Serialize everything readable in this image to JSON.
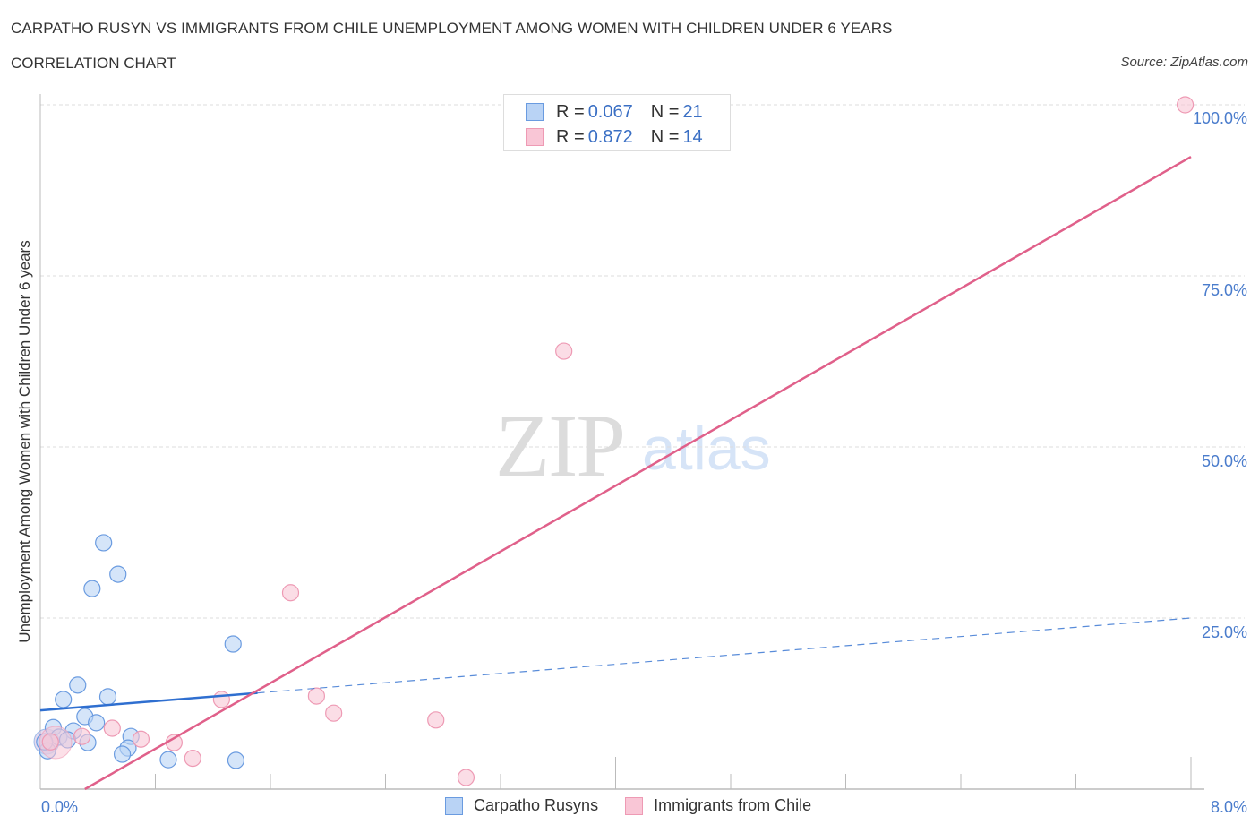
{
  "header": {
    "title": "CARPATHO RUSYN VS IMMIGRANTS FROM CHILE UNEMPLOYMENT AMONG WOMEN WITH CHILDREN UNDER 6 YEARS",
    "subtitle": "CORRELATION CHART",
    "source": "Source: ZipAtlas.com"
  },
  "watermark": {
    "zip": "ZIP",
    "atlas": "atlas"
  },
  "axes": {
    "y_label": "Unemployment Among Women with Children Under 6 years",
    "y_ticks": [
      "100.0%",
      "75.0%",
      "50.0%",
      "25.0%"
    ],
    "x_ticks": [
      "0.0%",
      "8.0%"
    ]
  },
  "legend_top": {
    "rows": [
      {
        "r_label": "R = ",
        "r_value": "0.067",
        "n_label": "N = ",
        "n_value": "21"
      },
      {
        "r_label": "R = ",
        "r_value": "0.872",
        "n_label": "N = ",
        "n_value": "14"
      }
    ]
  },
  "legend_bottom": [
    {
      "label": "Carpatho Rusyns"
    },
    {
      "label": "Immigrants from Chile"
    }
  ],
  "colors": {
    "blue_fill": "#b9d3f5",
    "blue_stroke": "#6a9be0",
    "blue_line": "#2f6fd0",
    "pink_fill": "#f9c6d6",
    "pink_stroke": "#ee9ab4",
    "pink_line": "#e0608a",
    "tick_text": "#4a7ccc",
    "grid": "#dddddd"
  },
  "chart_data": {
    "type": "scatter",
    "title": "CARPATHO RUSYN VS IMMIGRANTS FROM CHILE UNEMPLOYMENT AMONG WOMEN WITH CHILDREN UNDER 6 YEARS",
    "subtitle": "CORRELATION CHART",
    "xlabel": "",
    "ylabel": "Unemployment Among Women with Children Under 6 years",
    "xlim": [
      0,
      8
    ],
    "ylim": [
      0,
      100
    ],
    "x_unit": "%",
    "y_unit": "%",
    "y_ticks": [
      25,
      50,
      75,
      100
    ],
    "x_tick_labels": [
      "0.0%",
      "8.0%"
    ],
    "grid": true,
    "legend_position": "bottom",
    "series": [
      {
        "name": "Carpatho Rusyns",
        "R": 0.067,
        "N": 21,
        "color": "#6a9be0",
        "points": [
          [
            0.44,
            36.0
          ],
          [
            0.54,
            31.4
          ],
          [
            0.36,
            29.3
          ],
          [
            1.34,
            21.2
          ],
          [
            0.26,
            15.2
          ],
          [
            0.16,
            13.1
          ],
          [
            0.47,
            13.5
          ],
          [
            0.31,
            10.6
          ],
          [
            0.39,
            9.7
          ],
          [
            0.09,
            9.0
          ],
          [
            0.23,
            8.5
          ],
          [
            0.63,
            7.7
          ],
          [
            0.13,
            7.6
          ],
          [
            0.19,
            7.2
          ],
          [
            0.33,
            6.8
          ],
          [
            0.61,
            6.0
          ],
          [
            0.57,
            5.1
          ],
          [
            0.05,
            5.6
          ],
          [
            0.89,
            4.3
          ],
          [
            1.36,
            4.2
          ],
          [
            0.03,
            6.9
          ]
        ],
        "trendline": {
          "x": [
            0,
            8
          ],
          "y": [
            11.5,
            25.0
          ],
          "solid_until_x": 1.51
        }
      },
      {
        "name": "Immigrants from Chile",
        "R": 0.872,
        "N": 14,
        "color": "#ee9ab4",
        "points": [
          [
            7.96,
            100.0
          ],
          [
            3.64,
            64.0
          ],
          [
            1.74,
            28.7
          ],
          [
            1.92,
            13.6
          ],
          [
            1.26,
            13.1
          ],
          [
            2.04,
            11.1
          ],
          [
            2.75,
            10.1
          ],
          [
            0.5,
            8.9
          ],
          [
            0.29,
            7.7
          ],
          [
            0.7,
            7.3
          ],
          [
            0.93,
            6.8
          ],
          [
            1.06,
            4.5
          ],
          [
            2.96,
            1.7
          ],
          [
            0.07,
            6.9
          ]
        ],
        "trendline": {
          "x": [
            0.31,
            8
          ],
          "y": [
            0,
            92.4
          ]
        }
      }
    ]
  }
}
